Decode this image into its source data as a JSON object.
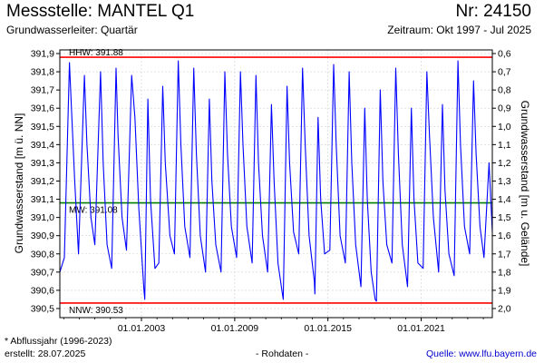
{
  "header": {
    "title": "Messstelle: MANTEL Q1",
    "number": "Nr: 24150",
    "subtitle_left": "Grundwasserleiter: Quartär",
    "subtitle_right": "Zeitraum: Okt 1997 - Jul 2025"
  },
  "footer": {
    "note": "* Abflussjahr (1996-2023)",
    "created": "erstellt:  28.07.2025",
    "raw": "- Rohdaten -",
    "source": "Quelle: www.lfu.bayern.de"
  },
  "chart_data": {
    "type": "line",
    "ylabel_left": "Grundwasserstand [m ü. NN]",
    "ylabel_right": "Grundwasserstand [m u. Gelände]",
    "xlim": [
      "1997-10-01",
      "2025-07-31"
    ],
    "ylim": [
      390.45,
      391.92
    ],
    "y_ticks": [
      {
        "value": 390.5,
        "label": "390,5"
      },
      {
        "value": 390.6,
        "label": "390,6"
      },
      {
        "value": 390.7,
        "label": "390,7"
      },
      {
        "value": 390.8,
        "label": "390,8"
      },
      {
        "value": 390.9,
        "label": "390,9"
      },
      {
        "value": 391.0,
        "label": "391,0"
      },
      {
        "value": 391.1,
        "label": "391,1"
      },
      {
        "value": 391.2,
        "label": "391,2"
      },
      {
        "value": 391.3,
        "label": "391,3"
      },
      {
        "value": 391.4,
        "label": "391,4"
      },
      {
        "value": 391.5,
        "label": "391,5"
      },
      {
        "value": 391.6,
        "label": "391,6"
      },
      {
        "value": 391.7,
        "label": "391,7"
      },
      {
        "value": 391.8,
        "label": "391,8"
      },
      {
        "value": 391.9,
        "label": "391,9"
      }
    ],
    "y2_ticks": [
      "0,6",
      "0,7",
      "0,8",
      "0,9",
      "1,0",
      "1,1",
      "1,2",
      "1,3",
      "1,4",
      "1,5",
      "1,6",
      "1,7",
      "1,8",
      "1,9",
      "2,0"
    ],
    "y2_ground_level": 392.5,
    "x_ticks": [
      {
        "date": "2003-01-01",
        "label": "01.01.2003"
      },
      {
        "date": "2009-01-01",
        "label": "01.01.2009"
      },
      {
        "date": "2015-01-01",
        "label": "01.01.2015"
      },
      {
        "date": "2021-01-01",
        "label": "01.01.2021"
      }
    ],
    "reference_lines": [
      {
        "label": "HHW: 391.88",
        "value": 391.88,
        "color": "#ff0000"
      },
      {
        "label": "MW: 391.08",
        "value": 391.08,
        "color": "#008000"
      },
      {
        "label": "NNW: 390.53",
        "value": 390.53,
        "color": "#ff0000"
      }
    ],
    "grid": true,
    "series": [
      {
        "color": "#0000ff",
        "points": [
          [
            "1997-10-01",
            390.7
          ],
          [
            "1998-01-15",
            390.78
          ],
          [
            "1998-05-15",
            391.85
          ],
          [
            "1998-07-01",
            391.6
          ],
          [
            "1998-09-15",
            391.2
          ],
          [
            "1998-12-15",
            390.8
          ],
          [
            "1999-05-01",
            391.78
          ],
          [
            "1999-07-01",
            391.4
          ],
          [
            "1999-10-01",
            391.0
          ],
          [
            "2000-01-01",
            390.85
          ],
          [
            "2000-05-15",
            391.8
          ],
          [
            "2000-07-15",
            391.3
          ],
          [
            "2000-10-15",
            390.85
          ],
          [
            "2001-02-01",
            390.72
          ],
          [
            "2001-05-15",
            391.82
          ],
          [
            "2001-07-01",
            391.45
          ],
          [
            "2001-10-01",
            391.0
          ],
          [
            "2002-01-15",
            390.82
          ],
          [
            "2002-05-15",
            391.78
          ],
          [
            "2002-08-01",
            391.55
          ],
          [
            "2002-11-01",
            391.05
          ],
          [
            "2003-03-01",
            390.6
          ],
          [
            "2003-03-20",
            390.55
          ],
          [
            "2003-06-01",
            391.65
          ],
          [
            "2003-08-01",
            391.1
          ],
          [
            "2003-11-15",
            390.72
          ],
          [
            "2004-02-15",
            390.75
          ],
          [
            "2004-05-15",
            391.72
          ],
          [
            "2004-07-15",
            391.3
          ],
          [
            "2004-11-01",
            390.9
          ],
          [
            "2005-02-15",
            390.8
          ],
          [
            "2005-05-15",
            391.86
          ],
          [
            "2005-07-15",
            391.4
          ],
          [
            "2005-10-15",
            390.95
          ],
          [
            "2006-02-15",
            390.78
          ],
          [
            "2006-05-15",
            391.82
          ],
          [
            "2006-07-15",
            391.35
          ],
          [
            "2006-10-15",
            390.9
          ],
          [
            "2007-02-15",
            390.7
          ],
          [
            "2007-05-15",
            391.65
          ],
          [
            "2007-07-15",
            391.2
          ],
          [
            "2007-10-15",
            390.85
          ],
          [
            "2008-02-15",
            390.7
          ],
          [
            "2008-05-15",
            391.8
          ],
          [
            "2008-07-15",
            391.35
          ],
          [
            "2008-10-15",
            390.95
          ],
          [
            "2009-02-15",
            390.78
          ],
          [
            "2009-05-15",
            391.8
          ],
          [
            "2009-07-15",
            391.4
          ],
          [
            "2009-10-15",
            390.95
          ],
          [
            "2010-02-15",
            390.75
          ],
          [
            "2010-05-15",
            391.78
          ],
          [
            "2010-07-15",
            391.3
          ],
          [
            "2010-10-15",
            390.9
          ],
          [
            "2011-02-15",
            390.7
          ],
          [
            "2011-05-15",
            391.62
          ],
          [
            "2011-07-15",
            391.2
          ],
          [
            "2011-10-15",
            390.75
          ],
          [
            "2012-01-15",
            390.6
          ],
          [
            "2012-02-15",
            390.55
          ],
          [
            "2012-05-15",
            391.72
          ],
          [
            "2012-07-15",
            391.3
          ],
          [
            "2012-10-15",
            390.92
          ],
          [
            "2013-02-15",
            390.8
          ],
          [
            "2013-05-15",
            391.82
          ],
          [
            "2013-07-15",
            391.4
          ],
          [
            "2013-10-15",
            390.9
          ],
          [
            "2014-02-15",
            390.65
          ],
          [
            "2014-03-01",
            390.58
          ],
          [
            "2014-05-15",
            391.55
          ],
          [
            "2014-07-15",
            391.1
          ],
          [
            "2014-10-15",
            390.8
          ],
          [
            "2015-02-15",
            390.82
          ],
          [
            "2015-05-15",
            391.84
          ],
          [
            "2015-07-15",
            391.4
          ],
          [
            "2015-10-15",
            390.9
          ],
          [
            "2016-02-15",
            390.75
          ],
          [
            "2016-05-15",
            391.8
          ],
          [
            "2016-07-15",
            391.3
          ],
          [
            "2016-10-15",
            390.85
          ],
          [
            "2017-02-15",
            390.62
          ],
          [
            "2017-05-15",
            391.6
          ],
          [
            "2017-07-15",
            391.1
          ],
          [
            "2017-10-15",
            390.7
          ],
          [
            "2018-01-15",
            390.55
          ],
          [
            "2018-02-15",
            390.54
          ],
          [
            "2018-05-15",
            391.7
          ],
          [
            "2018-07-15",
            391.2
          ],
          [
            "2018-10-15",
            390.85
          ],
          [
            "2019-02-15",
            390.75
          ],
          [
            "2019-05-15",
            391.82
          ],
          [
            "2019-07-15",
            391.35
          ],
          [
            "2019-10-15",
            390.85
          ],
          [
            "2020-02-15",
            390.62
          ],
          [
            "2020-05-15",
            391.6
          ],
          [
            "2020-07-15",
            391.1
          ],
          [
            "2020-10-15",
            390.75
          ],
          [
            "2021-02-15",
            390.72
          ],
          [
            "2021-05-15",
            391.8
          ],
          [
            "2021-07-15",
            391.45
          ],
          [
            "2021-10-15",
            391.0
          ],
          [
            "2022-02-15",
            390.7
          ],
          [
            "2022-05-15",
            391.62
          ],
          [
            "2022-07-15",
            391.15
          ],
          [
            "2022-10-15",
            390.8
          ],
          [
            "2023-02-15",
            390.68
          ],
          [
            "2023-05-15",
            391.86
          ],
          [
            "2023-07-15",
            391.4
          ],
          [
            "2023-10-15",
            390.95
          ],
          [
            "2024-02-15",
            390.8
          ],
          [
            "2024-05-15",
            391.75
          ],
          [
            "2024-07-15",
            391.35
          ],
          [
            "2024-10-15",
            390.95
          ],
          [
            "2025-01-15",
            390.78
          ],
          [
            "2025-05-15",
            391.3
          ],
          [
            "2025-07-31",
            390.92
          ]
        ]
      }
    ]
  }
}
